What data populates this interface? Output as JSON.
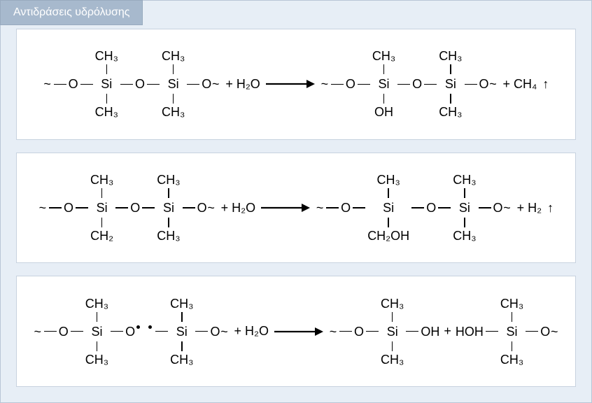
{
  "title": "Αντιδράσεις υδρόλυσης",
  "colors": {
    "panel_bg": "#e7eef6",
    "panel_border": "#b9c6d6",
    "tab_bg": "#a7b9cd",
    "tab_text": "#ffffff",
    "tab_border": "#98aabf",
    "rxn_bg": "#ffffff",
    "rxn_border": "#c7d2df",
    "text": "#000000",
    "arrow": "#000000"
  },
  "labels": {
    "ch3": "CH₃",
    "ch2": "CH₂",
    "ch2oh": "CH₂OH",
    "ch4": "CH₄",
    "oh": "OH",
    "si": "Si",
    "o": "O",
    "h2o": "H₂O",
    "h2": "H₂",
    "tilde": "~",
    "plus": "+",
    "hoh": "HOH",
    "gas_arrow": "↑"
  },
  "arrow": {
    "length": 70,
    "stroke": 2.2
  },
  "reactions": [
    {
      "id": "rxn1",
      "left": {
        "chain": [
          {
            "type": "txt",
            "v": "tilde"
          },
          {
            "type": "atom",
            "v": "o"
          },
          {
            "type": "si",
            "top": "ch3",
            "bottom": "ch3"
          },
          {
            "type": "atom",
            "v": "o"
          },
          {
            "type": "si",
            "top": "ch3",
            "bottom": "ch3"
          },
          {
            "type": "atom",
            "v": "o"
          },
          {
            "type": "txt",
            "v": "tilde"
          }
        ],
        "plus_h2o": true
      },
      "right": {
        "chain": [
          {
            "type": "txt",
            "v": "tilde"
          },
          {
            "type": "atom",
            "v": "o"
          },
          {
            "type": "si",
            "top": "ch3",
            "bottom": "oh"
          },
          {
            "type": "atom",
            "v": "o"
          },
          {
            "type": "si",
            "top": "ch3",
            "bottom": "ch3"
          },
          {
            "type": "atom",
            "v": "o"
          },
          {
            "type": "txt",
            "v": "tilde"
          }
        ],
        "tail": "ch4",
        "gas": true
      }
    },
    {
      "id": "rxn2",
      "left": {
        "chain": [
          {
            "type": "txt",
            "v": "tilde"
          },
          {
            "type": "atom",
            "v": "o"
          },
          {
            "type": "si",
            "top": "ch3",
            "bottom": "ch2"
          },
          {
            "type": "atom",
            "v": "o"
          },
          {
            "type": "si",
            "top": "ch3",
            "bottom": "ch3"
          },
          {
            "type": "atom",
            "v": "o"
          },
          {
            "type": "txt",
            "v": "tilde"
          }
        ],
        "plus_h2o": true
      },
      "right": {
        "chain": [
          {
            "type": "txt",
            "v": "tilde"
          },
          {
            "type": "atom",
            "v": "o"
          },
          {
            "type": "si",
            "top": "ch3",
            "bottom": "ch2oh"
          },
          {
            "type": "atom",
            "v": "o"
          },
          {
            "type": "si",
            "top": "ch3",
            "bottom": "ch3"
          },
          {
            "type": "atom",
            "v": "o"
          },
          {
            "type": "txt",
            "v": "tilde"
          }
        ],
        "tail": "h2",
        "gas": true
      }
    },
    {
      "id": "rxn3",
      "left": {
        "chain": [
          {
            "type": "txt",
            "v": "tilde"
          },
          {
            "type": "atom",
            "v": "o"
          },
          {
            "type": "si",
            "top": "ch3",
            "bottom": "ch3"
          },
          {
            "type": "o-radical"
          },
          {
            "type": "gap-radical"
          },
          {
            "type": "si",
            "top": "ch3",
            "bottom": "ch3"
          },
          {
            "type": "atom",
            "v": "o"
          },
          {
            "type": "txt",
            "v": "tilde"
          }
        ],
        "plus_h2o": true
      },
      "right": {
        "chain": [
          {
            "type": "txt",
            "v": "tilde"
          },
          {
            "type": "atom",
            "v": "o"
          },
          {
            "type": "si",
            "top": "ch3",
            "bottom": "ch3"
          },
          {
            "type": "atom",
            "v": "oh"
          },
          {
            "type": "plus"
          },
          {
            "type": "atom-nobond",
            "v": "hoh"
          },
          {
            "type": "si",
            "top": "ch3",
            "bottom": "ch3"
          },
          {
            "type": "atom",
            "v": "o"
          },
          {
            "type": "txt",
            "v": "tilde"
          }
        ]
      }
    }
  ]
}
